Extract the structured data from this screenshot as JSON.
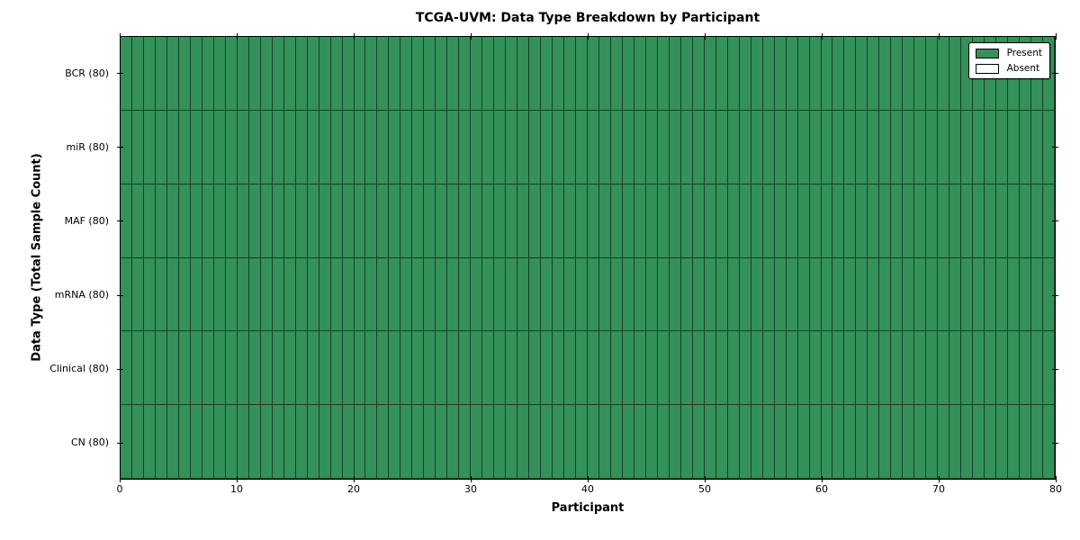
{
  "chart": {
    "title": "TCGA-UVM: Data Type Breakdown by Participant",
    "xlabel": "Participant",
    "ylabel": "Data Type (Total Sample Count)"
  },
  "legend": {
    "position": "upper right",
    "present_label": "Present",
    "absent_label": "Absent"
  },
  "chart_data": {
    "type": "heatmap",
    "title": "TCGA-UVM: Data Type Breakdown by Participant",
    "xlabel": "Participant",
    "ylabel": "Data Type (Total Sample Count)",
    "xlim": [
      0,
      80
    ],
    "x_ticks": [
      0,
      10,
      20,
      30,
      40,
      50,
      60,
      70,
      80
    ],
    "n_participants": 80,
    "rows": [
      {
        "label": "BCR (80)",
        "data_type": "BCR",
        "total_samples": 80,
        "present_count": 80,
        "absent_count": 0
      },
      {
        "label": "miR (80)",
        "data_type": "miR",
        "total_samples": 80,
        "present_count": 80,
        "absent_count": 0
      },
      {
        "label": "MAF (80)",
        "data_type": "MAF",
        "total_samples": 80,
        "present_count": 80,
        "absent_count": 0
      },
      {
        "label": "mRNA (80)",
        "data_type": "mRNA",
        "total_samples": 80,
        "present_count": 80,
        "absent_count": 0
      },
      {
        "label": "Clinical (80)",
        "data_type": "Clinical",
        "total_samples": 80,
        "present_count": 80,
        "absent_count": 0
      },
      {
        "label": "CN (80)",
        "data_type": "CN",
        "total_samples": 80,
        "present_count": 80,
        "absent_count": 0
      }
    ],
    "cell_semantics": "1 = Present (green), 0 = Absent (white); every cell in all 6 rows x 80 participant columns is Present",
    "colors": {
      "present": "#339159",
      "absent": "#ffffff",
      "cell_edge": "#000000"
    },
    "legend_entries": [
      {
        "label": "Present",
        "color": "#339159"
      },
      {
        "label": "Absent",
        "color": "#ffffff"
      }
    ],
    "grid": "cell edges drawn, inward tick marks on all four spines"
  }
}
